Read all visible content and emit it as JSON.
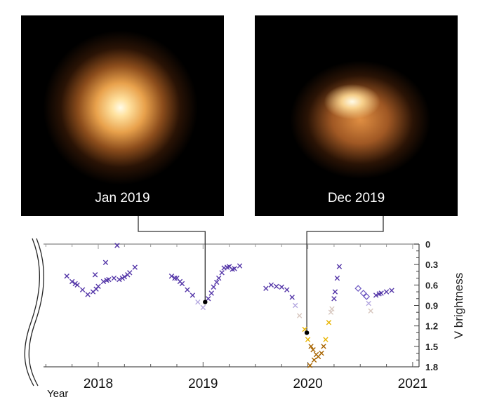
{
  "images": [
    {
      "label": "Jan 2019"
    },
    {
      "label": "Dec 2019"
    }
  ],
  "chart_data": {
    "type": "scatter",
    "xlabel": "Year",
    "ylabel": "V brightness",
    "x_ticks": [
      "2018",
      "2019",
      "2020",
      "2021"
    ],
    "y_ticks": [
      "0",
      "0.3",
      "0.6",
      "0.9",
      "1.2",
      "1.5",
      "1.8"
    ],
    "xlim": [
      2017.48,
      2021.06
    ],
    "ylim": [
      1.8,
      0
    ],
    "y_inverted": true,
    "grid": false,
    "colors": {
      "bright": "#5436a8",
      "mid": "#b4a8e0",
      "faint": "#d8c8c0",
      "dim": "#e8b400",
      "dimmest": "#a86400"
    },
    "points_x": [
      [
        2017.7,
        0.47
      ],
      [
        2017.75,
        0.55
      ],
      [
        2017.78,
        0.58
      ],
      [
        2017.8,
        0.6
      ],
      [
        2017.85,
        0.67
      ],
      [
        2017.9,
        0.74
      ],
      [
        2017.95,
        0.7
      ],
      [
        2017.98,
        0.66
      ],
      [
        2018.0,
        0.62
      ],
      [
        2018.05,
        0.55
      ],
      [
        2018.08,
        0.53
      ],
      [
        2018.1,
        0.52
      ],
      [
        2018.15,
        0.5
      ],
      [
        2018.2,
        0.52
      ],
      [
        2018.23,
        0.5
      ],
      [
        2018.25,
        0.48
      ],
      [
        2018.28,
        0.45
      ],
      [
        2018.3,
        0.42
      ],
      [
        2018.35,
        0.34
      ],
      [
        2018.07,
        0.27
      ],
      [
        2018.18,
        0.02
      ],
      [
        2017.97,
        0.45
      ],
      [
        2018.7,
        0.47
      ],
      [
        2018.73,
        0.5
      ],
      [
        2018.75,
        0.5
      ],
      [
        2018.78,
        0.55
      ],
      [
        2018.8,
        0.58
      ],
      [
        2018.85,
        0.67
      ],
      [
        2018.9,
        0.75
      ],
      [
        2018.95,
        0.85
      ],
      [
        2019.0,
        0.93
      ],
      [
        2019.05,
        0.8
      ],
      [
        2019.08,
        0.72
      ],
      [
        2019.1,
        0.63
      ],
      [
        2019.13,
        0.56
      ],
      [
        2019.15,
        0.5
      ],
      [
        2019.18,
        0.42
      ],
      [
        2019.2,
        0.35
      ],
      [
        2019.23,
        0.34
      ],
      [
        2019.25,
        0.33
      ],
      [
        2019.28,
        0.37
      ],
      [
        2019.3,
        0.36
      ],
      [
        2019.35,
        0.32
      ],
      [
        2019.6,
        0.65
      ],
      [
        2019.65,
        0.6
      ],
      [
        2019.7,
        0.62
      ],
      [
        2019.75,
        0.63
      ],
      [
        2019.8,
        0.67
      ],
      [
        2019.85,
        0.78
      ],
      [
        2019.88,
        0.9
      ],
      [
        2019.92,
        1.05
      ],
      [
        2019.97,
        1.25
      ],
      [
        2020.0,
        1.4
      ],
      [
        2020.03,
        1.5
      ],
      [
        2020.05,
        1.55
      ],
      [
        2020.08,
        1.62
      ],
      [
        2020.1,
        1.65
      ],
      [
        2020.13,
        1.6
      ],
      [
        2020.15,
        1.5
      ],
      [
        2020.17,
        1.4
      ],
      [
        2020.2,
        1.15
      ],
      [
        2020.22,
        1.0
      ],
      [
        2020.23,
        0.95
      ],
      [
        2020.25,
        0.8
      ],
      [
        2020.26,
        0.7
      ],
      [
        2020.28,
        0.5
      ],
      [
        2020.3,
        0.33
      ],
      [
        2020.02,
        1.78
      ],
      [
        2020.06,
        1.7
      ],
      [
        2020.58,
        0.87
      ],
      [
        2020.6,
        0.98
      ],
      [
        2020.65,
        0.75
      ],
      [
        2020.68,
        0.73
      ],
      [
        2020.7,
        0.72
      ],
      [
        2020.75,
        0.7
      ],
      [
        2020.8,
        0.68
      ]
    ],
    "points_diamond": [
      [
        2020.48,
        0.65
      ],
      [
        2020.53,
        0.72
      ],
      [
        2020.56,
        0.77
      ]
    ],
    "highlighted": [
      {
        "x": 2019.02,
        "y": 0.85,
        "image": "Jan 2019"
      },
      {
        "x": 2019.99,
        "y": 1.3,
        "image": "Dec 2019"
      }
    ]
  }
}
